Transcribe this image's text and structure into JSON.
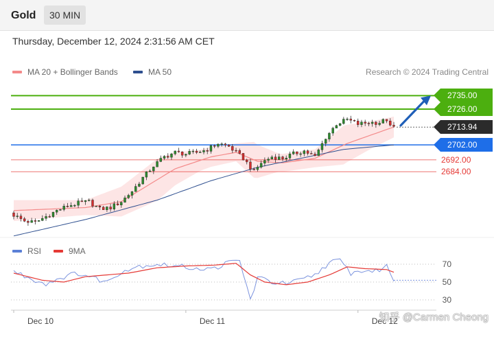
{
  "header": {
    "title": "Gold",
    "interval": "30 MIN"
  },
  "datetime": "Thursday, December 12, 2024 2:31:56 AM CET",
  "legend": {
    "ma20": {
      "label": "MA 20 + Bollinger Bands",
      "color": "#f48a8a"
    },
    "ma50": {
      "label": "MA 50",
      "color": "#2e4f8f"
    }
  },
  "source": "Research © 2024 Trading Central",
  "levels": [
    {
      "value": 2735.0,
      "label": "2735.00",
      "color": "#4caf0f",
      "style": "box"
    },
    {
      "value": 2726.0,
      "label": "2726.00",
      "color": "#4caf0f",
      "style": "box"
    },
    {
      "value": 2713.94,
      "label": "2713.94",
      "color": "#2b2b2b",
      "style": "current"
    },
    {
      "value": 2702.0,
      "label": "2702.00",
      "color": "#1e6ee8",
      "style": "box"
    },
    {
      "value": 2692.0,
      "label": "2692.00",
      "color": "#e53935",
      "style": "text"
    },
    {
      "value": 2684.0,
      "label": "2684.00",
      "color": "#e53935",
      "style": "text"
    }
  ],
  "rsi_legend": {
    "rsi": {
      "label": "RSI",
      "color": "#5b7fd6"
    },
    "ma9": {
      "label": "9MA",
      "color": "#e53935"
    }
  },
  "rsi_levels": [
    {
      "value": 70,
      "label": "70"
    },
    {
      "value": 50,
      "label": "50"
    },
    {
      "value": 30,
      "label": "30"
    }
  ],
  "x_labels": [
    {
      "label": "Dec 10",
      "index": 7
    },
    {
      "label": "Dec 11",
      "index": 55
    },
    {
      "label": "Dec 12",
      "index": 103
    }
  ],
  "watermark": "知乎 @Carmen Cheong",
  "chart_data": {
    "type": "candlestick",
    "instrument": "Gold",
    "interval": "30 MIN",
    "price_range": [
      2640,
      2743
    ],
    "rsi_range": [
      20,
      80
    ],
    "anchors_close": [
      [
        0,
        2655
      ],
      [
        3,
        2651
      ],
      [
        6,
        2650
      ],
      [
        9,
        2654
      ],
      [
        12,
        2658
      ],
      [
        15,
        2661
      ],
      [
        18,
        2663
      ],
      [
        21,
        2664
      ],
      [
        24,
        2659
      ],
      [
        27,
        2660
      ],
      [
        30,
        2664
      ],
      [
        33,
        2671
      ],
      [
        36,
        2680
      ],
      [
        39,
        2688
      ],
      [
        42,
        2694
      ],
      [
        45,
        2697
      ],
      [
        48,
        2696
      ],
      [
        51,
        2697
      ],
      [
        54,
        2699
      ],
      [
        57,
        2703
      ],
      [
        60,
        2701
      ],
      [
        64,
        2693
      ],
      [
        67,
        2684
      ],
      [
        69,
        2690
      ],
      [
        72,
        2694
      ],
      [
        75,
        2693
      ],
      [
        78,
        2696
      ],
      [
        81,
        2698
      ],
      [
        84,
        2694
      ],
      [
        87,
        2707
      ],
      [
        90,
        2716
      ],
      [
        93,
        2719
      ],
      [
        96,
        2716
      ],
      [
        99,
        2717
      ],
      [
        102,
        2717
      ],
      [
        104,
        2719
      ],
      [
        105,
        2714
      ],
      [
        106,
        2713.94
      ]
    ],
    "anchors_ma20": [
      [
        0,
        2658
      ],
      [
        20,
        2660
      ],
      [
        30,
        2664
      ],
      [
        45,
        2686
      ],
      [
        55,
        2694
      ],
      [
        62,
        2697
      ],
      [
        68,
        2691
      ],
      [
        75,
        2690
      ],
      [
        84,
        2693
      ],
      [
        93,
        2703
      ],
      [
        106,
        2714
      ]
    ],
    "anchors_ma50": [
      [
        0,
        2641
      ],
      [
        20,
        2652
      ],
      [
        40,
        2665
      ],
      [
        55,
        2678
      ],
      [
        68,
        2687
      ],
      [
        80,
        2693
      ],
      [
        92,
        2699
      ],
      [
        106,
        2702
      ]
    ],
    "bollinger_halfwidth": [
      [
        0,
        7
      ],
      [
        20,
        5
      ],
      [
        30,
        10
      ],
      [
        40,
        14
      ],
      [
        52,
        7
      ],
      [
        62,
        6
      ],
      [
        67,
        12
      ],
      [
        74,
        6
      ],
      [
        84,
        6
      ],
      [
        92,
        13
      ],
      [
        100,
        9
      ],
      [
        106,
        7
      ]
    ],
    "rsi_anchors": [
      [
        0,
        62
      ],
      [
        4,
        55
      ],
      [
        9,
        48
      ],
      [
        13,
        55
      ],
      [
        18,
        60
      ],
      [
        22,
        55
      ],
      [
        26,
        50
      ],
      [
        30,
        62
      ],
      [
        35,
        68
      ],
      [
        40,
        70
      ],
      [
        45,
        68
      ],
      [
        50,
        66
      ],
      [
        55,
        64
      ],
      [
        60,
        72
      ],
      [
        63,
        74
      ],
      [
        65,
        45
      ],
      [
        66,
        30
      ],
      [
        68,
        55
      ],
      [
        72,
        50
      ],
      [
        76,
        48
      ],
      [
        80,
        52
      ],
      [
        84,
        58
      ],
      [
        88,
        72
      ],
      [
        91,
        74
      ],
      [
        94,
        60
      ],
      [
        98,
        63
      ],
      [
        101,
        62
      ],
      [
        104,
        68
      ],
      [
        106,
        52
      ]
    ],
    "rsi_ma9_anchors": [
      [
        0,
        60
      ],
      [
        8,
        52
      ],
      [
        14,
        50
      ],
      [
        20,
        56
      ],
      [
        26,
        58
      ],
      [
        32,
        60
      ],
      [
        40,
        66
      ],
      [
        48,
        68
      ],
      [
        56,
        69
      ],
      [
        62,
        71
      ],
      [
        66,
        58
      ],
      [
        70,
        50
      ],
      [
        76,
        47
      ],
      [
        82,
        50
      ],
      [
        88,
        58
      ],
      [
        93,
        67
      ],
      [
        98,
        65
      ],
      [
        104,
        64
      ],
      [
        106,
        61
      ]
    ]
  }
}
